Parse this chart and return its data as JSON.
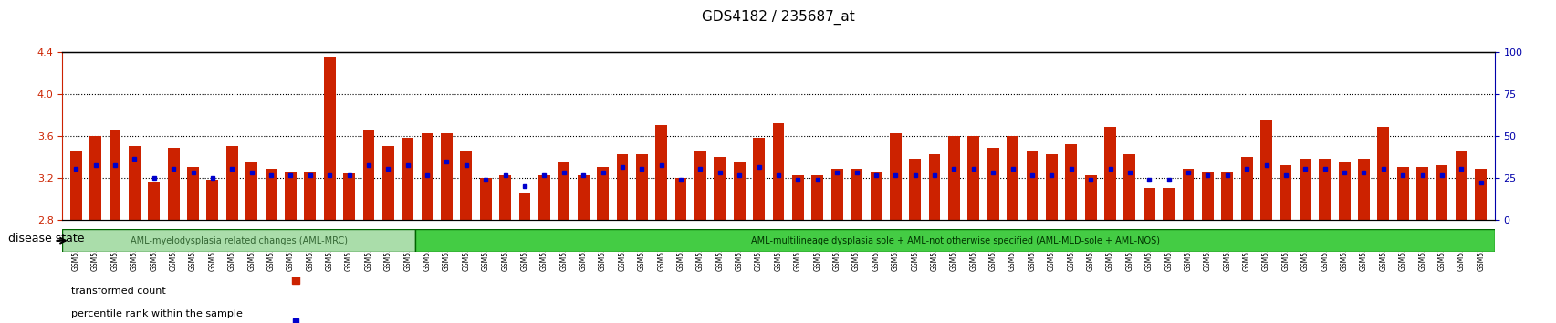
{
  "title": "GDS4182 / 235687_at",
  "left_ylim": [
    2.8,
    4.4
  ],
  "right_ylim": [
    0,
    100
  ],
  "left_yticks": [
    2.8,
    3.2,
    3.6,
    4.0,
    4.4
  ],
  "right_yticks": [
    0,
    25,
    50,
    75,
    100
  ],
  "bar_color": "#cc2200",
  "dot_color": "#0000cc",
  "baseline": 2.8,
  "samples": [
    "GSM531600",
    "GSM531601",
    "GSM531605",
    "GSM531615",
    "GSM531617",
    "GSM531624",
    "GSM531627",
    "GSM531629",
    "GSM531631",
    "GSM531634",
    "GSM531636",
    "GSM531637",
    "GSM531654",
    "GSM531655",
    "GSM531658",
    "GSM531660",
    "GSM531602",
    "GSM531603",
    "GSM531604",
    "GSM531606",
    "GSM531607",
    "GSM531608",
    "GSM531609",
    "GSM531610",
    "GSM531611",
    "GSM531612",
    "GSM531613",
    "GSM531614",
    "GSM531616",
    "GSM531618",
    "GSM531619",
    "GSM531620",
    "GSM531621",
    "GSM531622",
    "GSM531623",
    "GSM531625",
    "GSM531626",
    "GSM531628",
    "GSM531630",
    "GSM531632",
    "GSM531633",
    "GSM531635",
    "GSM531638",
    "GSM531639",
    "GSM531640",
    "GSM531641",
    "GSM531642",
    "GSM531643",
    "GSM531644",
    "GSM531645",
    "GSM531646",
    "GSM531647",
    "GSM531648",
    "GSM531649",
    "GSM531650",
    "GSM531651",
    "GSM531652",
    "GSM531653",
    "GSM531656",
    "GSM531657",
    "GSM531659",
    "GSM531661",
    "GSM531662",
    "GSM531663",
    "GSM531664",
    "GSM531665",
    "GSM531666",
    "GSM531667",
    "GSM531668",
    "GSM531669",
    "GSM531670",
    "GSM531671",
    "GSM531672"
  ],
  "bar_heights": [
    3.45,
    3.6,
    3.65,
    3.5,
    3.15,
    3.48,
    3.3,
    3.18,
    3.5,
    3.35,
    3.28,
    3.25,
    3.26,
    4.35,
    3.24,
    3.65,
    3.5,
    3.58,
    3.62,
    3.62,
    3.46,
    3.2,
    3.22,
    3.05,
    3.22,
    3.35,
    3.22,
    3.3,
    3.42,
    3.42,
    3.7,
    3.2,
    3.45,
    3.4,
    3.35,
    3.58,
    3.72,
    3.22,
    3.22,
    3.28,
    3.28,
    3.26,
    3.62,
    3.38,
    3.42,
    3.6,
    3.6,
    3.48,
    3.6,
    3.45,
    3.42,
    3.52,
    3.22,
    3.68,
    3.42,
    3.1,
    3.1,
    3.28,
    3.25,
    3.25,
    3.4,
    3.75,
    3.32,
    3.38,
    3.38,
    3.35,
    3.38,
    3.68,
    3.3,
    3.3,
    3.32,
    3.45,
    3.28
  ],
  "dot_heights": [
    3.28,
    3.32,
    3.32,
    3.38,
    3.2,
    3.28,
    3.25,
    3.2,
    3.28,
    3.25,
    3.22,
    3.22,
    3.22,
    3.22,
    3.22,
    3.32,
    3.28,
    3.32,
    3.22,
    3.35,
    3.32,
    3.18,
    3.22,
    3.12,
    3.22,
    3.25,
    3.22,
    3.25,
    3.3,
    3.28,
    3.32,
    3.18,
    3.28,
    3.25,
    3.22,
    3.3,
    3.22,
    3.18,
    3.18,
    3.25,
    3.25,
    3.22,
    3.22,
    3.22,
    3.22,
    3.28,
    3.28,
    3.25,
    3.28,
    3.22,
    3.22,
    3.28,
    3.18,
    3.28,
    3.25,
    3.18,
    3.18,
    3.25,
    3.22,
    3.22,
    3.28,
    3.32,
    3.22,
    3.28,
    3.28,
    3.25,
    3.25,
    3.28,
    3.22,
    3.22,
    3.22,
    3.28,
    3.15
  ],
  "group1_label": "AML-myelodysplasia related changes (AML-MRC)",
  "group2_label": "AML-multilineage dysplasia sole + AML-not otherwise specified (AML-MLD-sole + AML-NOS)",
  "group1_color": "#aaddaa",
  "group2_color": "#44cc44",
  "group1_count": 18,
  "disease_state_label": "disease state",
  "legend_bar_label": "transformed count",
  "legend_dot_label": "percentile rank within the sample",
  "bg_color": "#ffffff",
  "grid_color": "#000000",
  "tick_color_left": "#cc2200",
  "tick_color_right": "#0000aa"
}
